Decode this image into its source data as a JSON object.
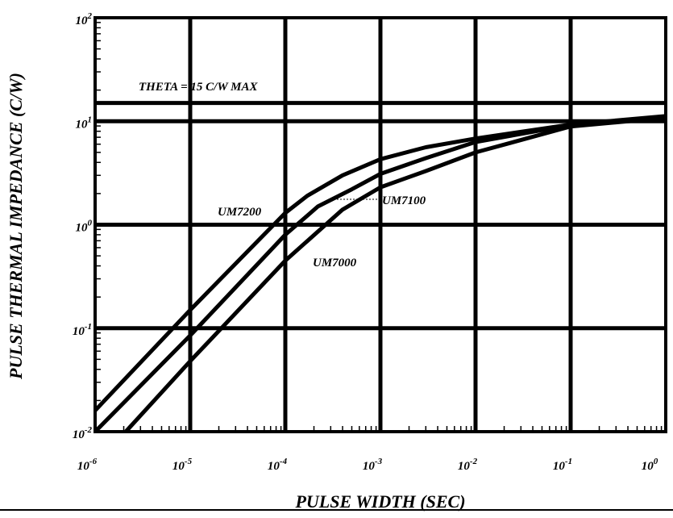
{
  "chart_data": {
    "type": "line",
    "xlabel": "PULSE WIDTH (SEC)",
    "ylabel": "PULSE THERMAL IMPEDANCE (C/W)",
    "x_scale": "log",
    "y_scale": "log",
    "xlim": [
      1e-06,
      1
    ],
    "ylim": [
      0.01,
      100
    ],
    "grid": true,
    "x_ticks": [
      {
        "base": "10",
        "exp": "-6",
        "value": 1e-06
      },
      {
        "base": "10",
        "exp": "-5",
        "value": 1e-05
      },
      {
        "base": "10",
        "exp": "-4",
        "value": 0.0001
      },
      {
        "base": "10",
        "exp": "-3",
        "value": 0.001
      },
      {
        "base": "10",
        "exp": "-2",
        "value": 0.01
      },
      {
        "base": "10",
        "exp": "-1",
        "value": 0.1
      },
      {
        "base": "10",
        "exp": "0",
        "value": 1
      }
    ],
    "y_ticks": [
      {
        "base": "10",
        "exp": "-2",
        "value": 0.01
      },
      {
        "base": "10",
        "exp": "-1",
        "value": 0.1
      },
      {
        "base": "10",
        "exp": "0",
        "value": 1
      },
      {
        "base": "10",
        "exp": "1",
        "value": 10
      },
      {
        "base": "10",
        "exp": "2",
        "value": 100
      }
    ],
    "reference_line": {
      "label": "THETA = 15 C/W MAX",
      "y": 15
    },
    "series": [
      {
        "name": "UM7200",
        "x": [
          1e-06,
          1e-05,
          0.0001,
          0.00017,
          0.0004,
          0.001,
          0.003,
          0.01,
          0.1,
          1
        ],
        "y": [
          0.016,
          0.15,
          1.3,
          1.9,
          3.0,
          4.3,
          5.6,
          6.8,
          9.3,
          11.2
        ]
      },
      {
        "name": "UM7100",
        "x": [
          1e-06,
          1e-05,
          0.0001,
          0.00022,
          0.0005,
          0.001,
          0.003,
          0.01,
          0.1,
          1
        ],
        "y": [
          0.01,
          0.085,
          0.8,
          1.5,
          2.2,
          3.1,
          4.4,
          6.3,
          9.2,
          11.1
        ]
      },
      {
        "name": "UM7000",
        "x": [
          2.1e-06,
          1e-05,
          0.0001,
          0.0004,
          0.001,
          0.003,
          0.01,
          0.1,
          1
        ],
        "y": [
          0.01,
          0.048,
          0.45,
          1.4,
          2.3,
          3.3,
          5.0,
          8.9,
          10.8
        ]
      }
    ]
  }
}
